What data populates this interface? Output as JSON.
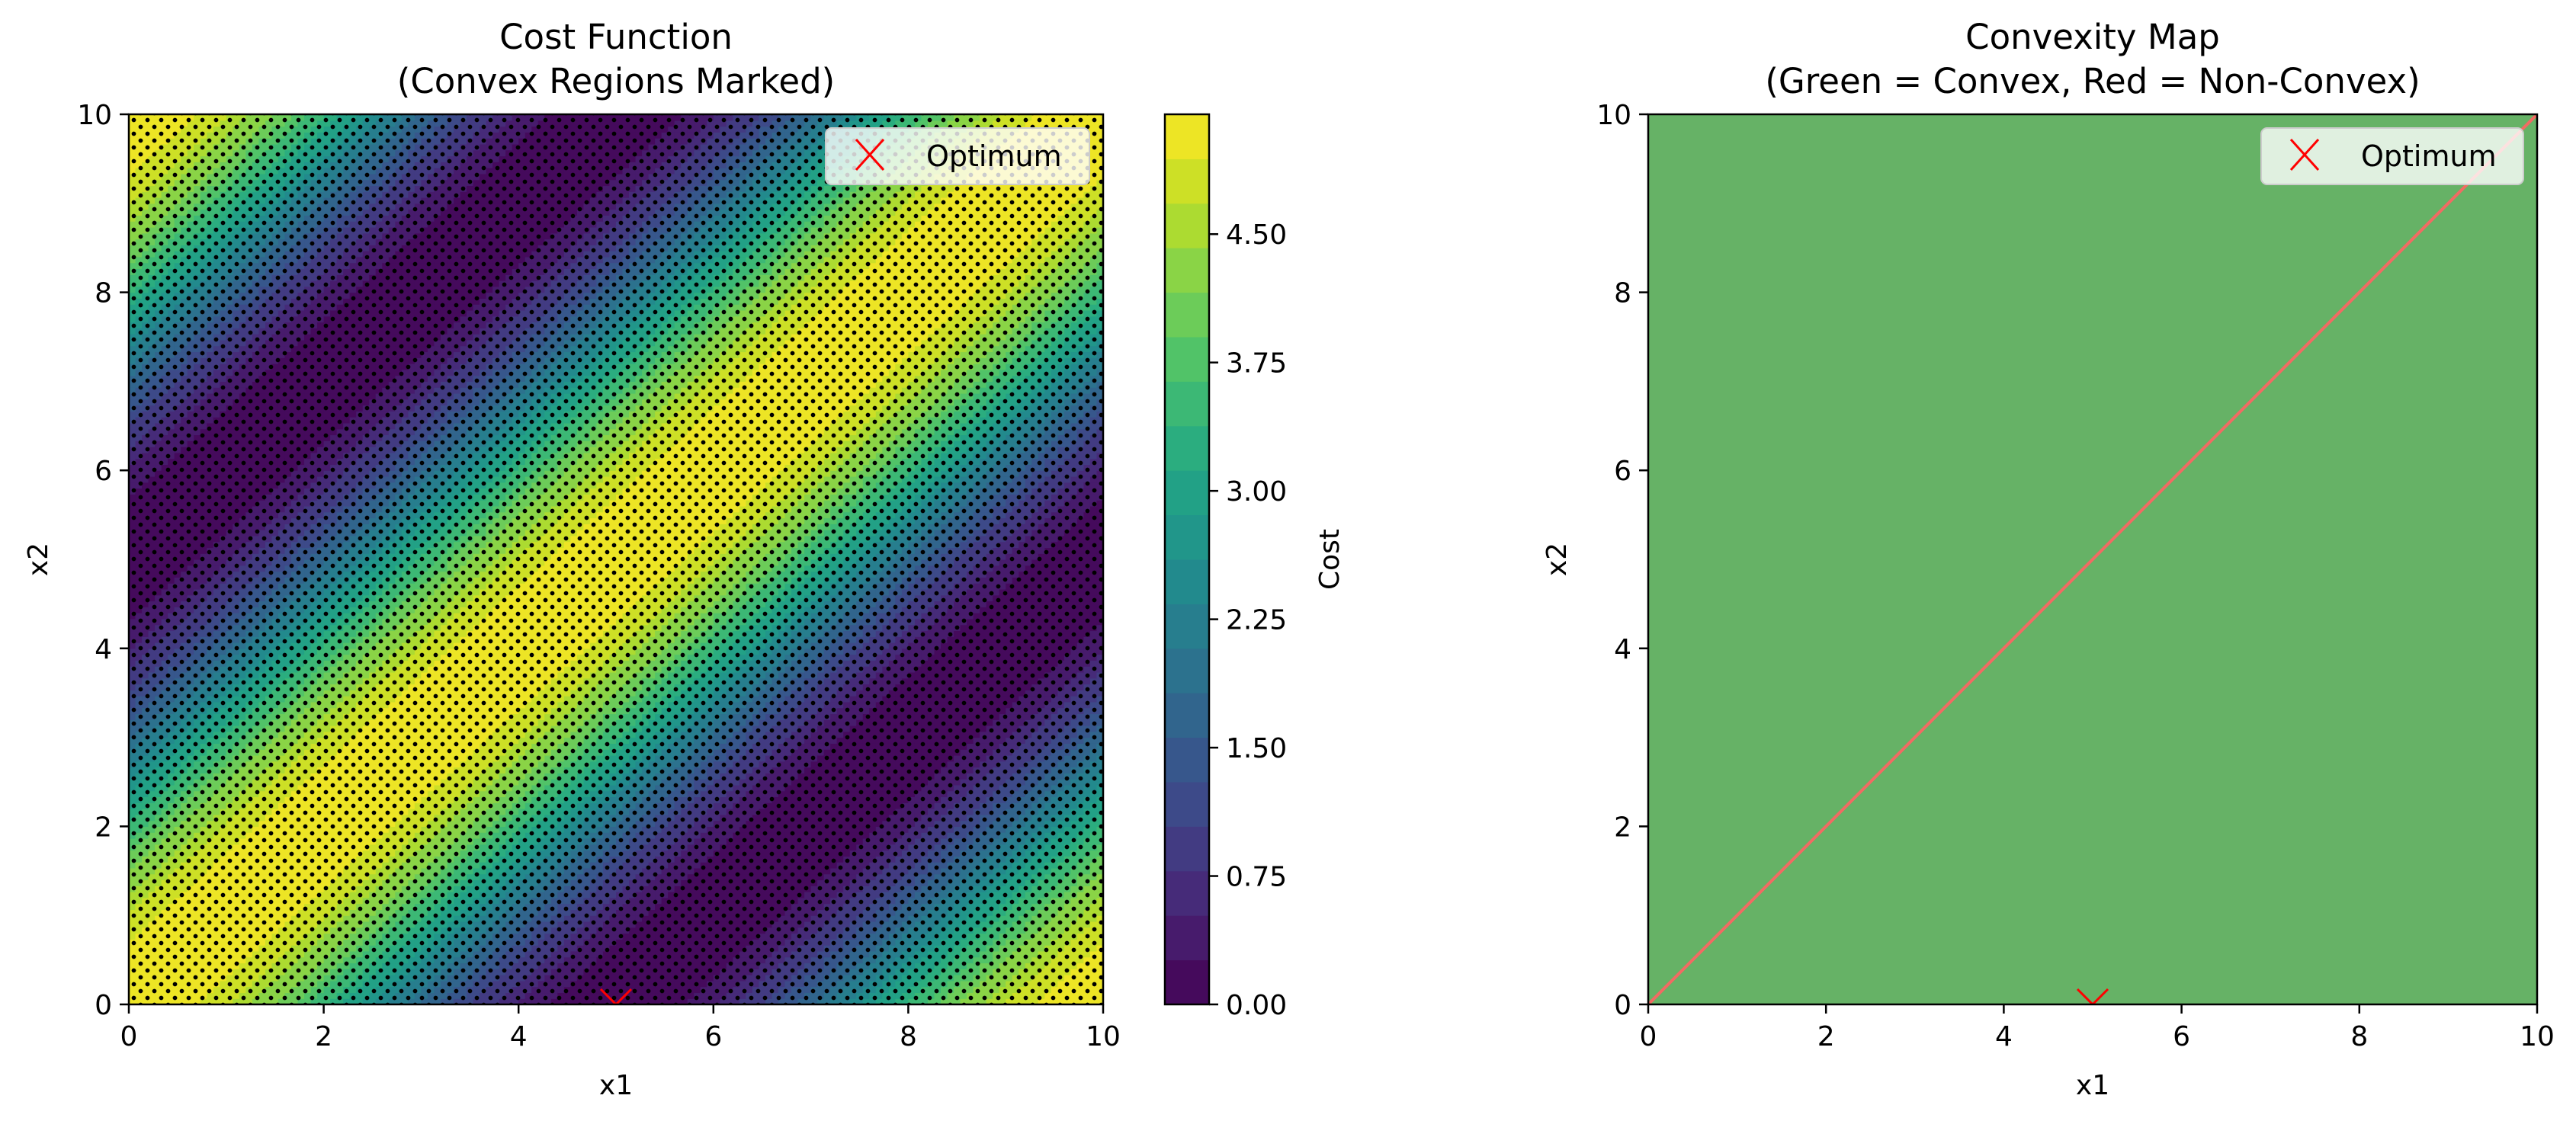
{
  "figure": {
    "background": "#ffffff"
  },
  "chart_data": [
    {
      "type": "heatmap",
      "title": "Cost Function\n(Convex Regions Marked)",
      "title_lines": [
        "Cost Function",
        "(Convex Regions Marked)"
      ],
      "xlabel": "x1",
      "ylabel": "x2",
      "xlim": [
        0,
        10
      ],
      "ylim": [
        0,
        10
      ],
      "xticks": [
        0,
        2,
        4,
        6,
        8,
        10
      ],
      "yticks": [
        0,
        2,
        4,
        6,
        8,
        10
      ],
      "xtick_labels": [
        "0",
        "2",
        "4",
        "6",
        "8",
        "10"
      ],
      "ytick_labels": [
        "0",
        "2",
        "4",
        "6",
        "8",
        "10"
      ],
      "function": "z = 2.6 + 2.6 * cos(pi * (x1 - x2) / 5)",
      "zlim": [
        0,
        5.2
      ],
      "colormap": "viridis",
      "contour_levels": 20,
      "convex_marker": "black dot grid",
      "colorbar": {
        "label": "Cost",
        "ticks": [
          0.0,
          0.75,
          1.5,
          2.25,
          3.0,
          3.75,
          4.5
        ],
        "tick_labels": [
          "0.00",
          "0.75",
          "1.50",
          "2.25",
          "3.00",
          "3.75",
          "4.50"
        ]
      },
      "markers": [
        {
          "name": "Optimum",
          "x": 5,
          "y": 0,
          "symbol": "x",
          "color": "#ff0000"
        }
      ],
      "legend": {
        "entries": [
          "Optimum"
        ],
        "position": "top-right"
      },
      "grid": false
    },
    {
      "type": "heatmap",
      "title": "Convexity Map\n(Green = Convex, Red = Non-Convex)",
      "title_lines": [
        "Convexity Map",
        "(Green = Convex, Red = Non-Convex)"
      ],
      "xlabel": "x1",
      "ylabel": "x2",
      "xlim": [
        0,
        10
      ],
      "ylim": [
        0,
        10
      ],
      "xticks": [
        0,
        2,
        4,
        6,
        8,
        10
      ],
      "yticks": [
        0,
        2,
        4,
        6,
        8,
        10
      ],
      "xtick_labels": [
        "0",
        "2",
        "4",
        "6",
        "8",
        "10"
      ],
      "ytick_labels": [
        "0",
        "2",
        "4",
        "6",
        "8",
        "10"
      ],
      "fill_color": "#66b266",
      "boundary_color": "#f26b63",
      "boundary_line": {
        "x": [
          0,
          10
        ],
        "y": [
          0,
          10
        ]
      },
      "markers": [
        {
          "name": "Optimum",
          "x": 5,
          "y": 0,
          "symbol": "x",
          "color": "#ff0000"
        }
      ],
      "legend": {
        "entries": [
          "Optimum"
        ],
        "position": "top-right"
      },
      "grid": false
    }
  ]
}
